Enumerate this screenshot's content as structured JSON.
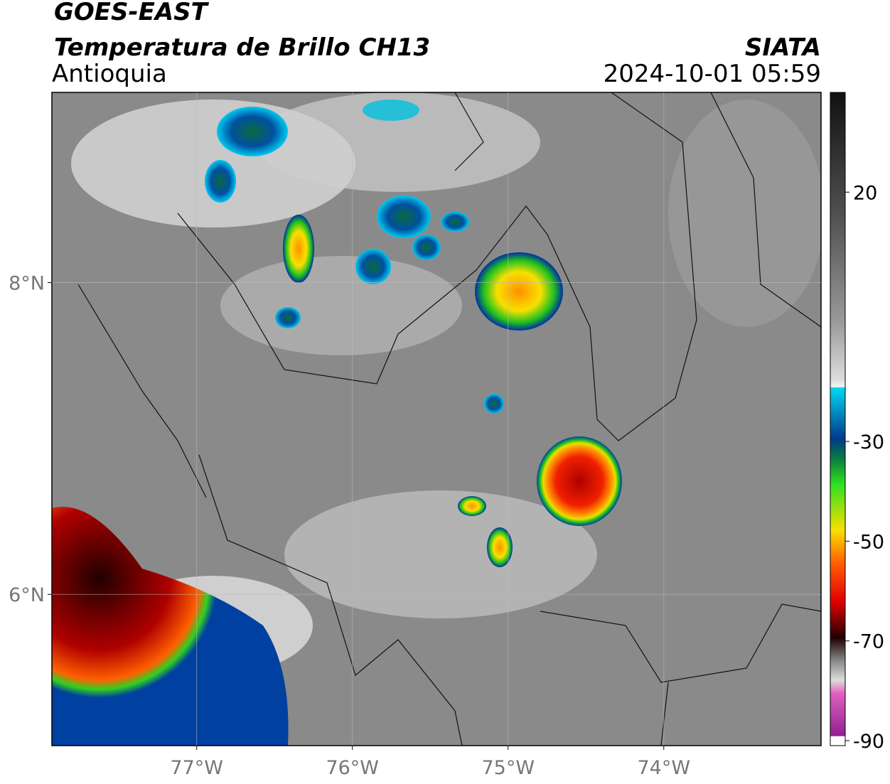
{
  "header": {
    "title": "GOES-EAST",
    "subtitle": "Temperatura de Brillo CH13",
    "region": "Antioquia",
    "source": "SIATA",
    "datetime": "2024-10-01 05:59"
  },
  "map": {
    "xlim": [
      -77.93,
      -72.99
    ],
    "ylim": [
      5.03,
      9.22
    ],
    "xticks": [
      {
        "value": -77,
        "label": "77°W"
      },
      {
        "value": -76,
        "label": "76°W"
      },
      {
        "value": -75,
        "label": "75°W"
      },
      {
        "value": -74,
        "label": "74°W"
      }
    ],
    "yticks": [
      {
        "value": 6,
        "label": "6°N"
      },
      {
        "value": 8,
        "label": "8°N"
      }
    ],
    "grid": true
  },
  "colorbar": {
    "clim": [
      -91,
      40
    ],
    "ticks": [
      20,
      -30,
      -50,
      -70,
      -90
    ]
  }
}
